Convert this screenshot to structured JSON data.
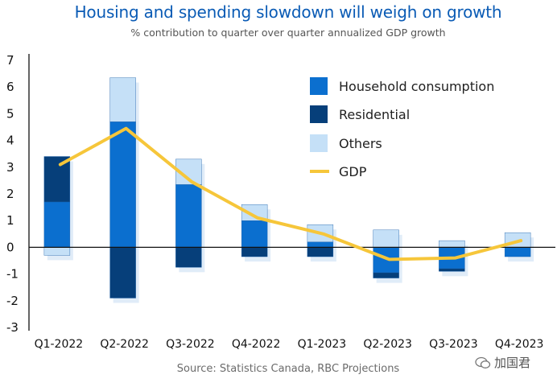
{
  "chart_data": {
    "type": "bar",
    "stacked": true,
    "title": "Housing and spending slowdown will weigh on growth",
    "subtitle": "% contribution to quarter over quarter annualized GDP growth",
    "source": "Source: Statistics Canada, RBC Projections",
    "categories": [
      "Q1-2022",
      "Q2-2022",
      "Q3-2022",
      "Q4-2022",
      "Q1-2023",
      "Q2-2023",
      "Q3-2023",
      "Q4-2023"
    ],
    "ylim": [
      -3,
      7
    ],
    "yticks": [
      "-3",
      "-2",
      "-1",
      "0",
      "1",
      "2",
      "3",
      "4",
      "5",
      "6",
      "7"
    ],
    "series": [
      {
        "name": "Household consumption",
        "color": "#0b6fcf",
        "values": [
          1.7,
          4.7,
          2.35,
          1.0,
          0.2,
          -0.95,
          -0.8,
          -0.35
        ]
      },
      {
        "name": "Residential",
        "color": "#063f7a",
        "values": [
          1.7,
          -1.9,
          -0.75,
          -0.35,
          -0.35,
          -0.2,
          -0.1,
          0.0
        ]
      },
      {
        "name": "Others",
        "color": "#c5e0f7",
        "values": [
          -0.3,
          1.65,
          0.95,
          0.6,
          0.65,
          0.65,
          0.25,
          0.55
        ]
      }
    ],
    "line": {
      "name": "GDP",
      "color": "#f6c63a",
      "values": [
        3.1,
        4.45,
        2.45,
        1.1,
        0.5,
        -0.45,
        -0.4,
        0.25
      ]
    }
  },
  "watermark": "加国君"
}
